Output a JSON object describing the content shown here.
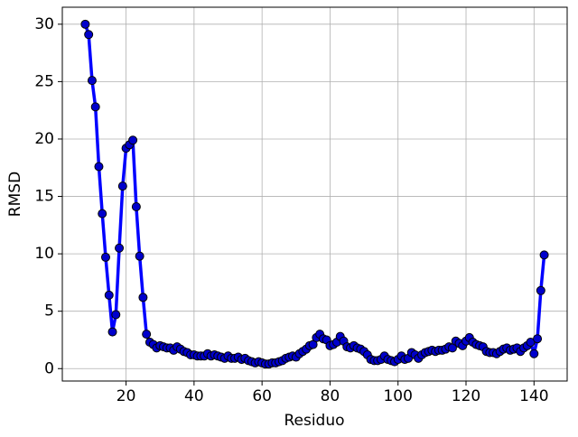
{
  "chart_data": {
    "type": "line",
    "xlabel": "Residuo",
    "ylabel": "RMSD",
    "x": [
      8,
      9,
      10,
      11,
      12,
      13,
      14,
      15,
      16,
      17,
      18,
      19,
      20,
      21,
      22,
      23,
      24,
      25,
      26,
      27,
      28,
      29,
      30,
      31,
      32,
      33,
      34,
      35,
      36,
      37,
      38,
      39,
      40,
      41,
      42,
      43,
      44,
      45,
      46,
      47,
      48,
      49,
      50,
      51,
      52,
      53,
      54,
      55,
      56,
      57,
      58,
      59,
      60,
      61,
      62,
      63,
      64,
      65,
      66,
      67,
      68,
      69,
      70,
      71,
      72,
      73,
      74,
      75,
      76,
      77,
      78,
      79,
      80,
      81,
      82,
      83,
      84,
      85,
      86,
      87,
      88,
      89,
      90,
      91,
      92,
      93,
      94,
      95,
      96,
      97,
      98,
      99,
      100,
      101,
      102,
      103,
      104,
      105,
      106,
      107,
      108,
      109,
      110,
      111,
      112,
      113,
      114,
      115,
      116,
      117,
      118,
      119,
      120,
      121,
      122,
      123,
      124,
      125,
      126,
      127,
      128,
      129,
      130,
      131,
      132,
      133,
      134,
      135,
      136,
      137,
      138,
      139,
      140,
      141,
      142,
      143
    ],
    "series": [
      {
        "color": "#0000ff",
        "marker_color": "#0000cc",
        "values": [
          30.0,
          29.1,
          25.1,
          22.8,
          17.6,
          13.5,
          9.7,
          6.4,
          3.2,
          4.7,
          10.5,
          15.9,
          19.2,
          19.5,
          19.9,
          14.1,
          9.8,
          6.2,
          3.0,
          2.3,
          2.1,
          1.8,
          2.0,
          1.9,
          1.8,
          1.8,
          1.6,
          1.9,
          1.7,
          1.5,
          1.4,
          1.2,
          1.2,
          1.1,
          1.1,
          1.1,
          1.3,
          1.1,
          1.2,
          1.1,
          1.0,
          0.9,
          1.1,
          0.9,
          0.9,
          1.0,
          0.8,
          0.9,
          0.7,
          0.6,
          0.5,
          0.6,
          0.5,
          0.4,
          0.4,
          0.5,
          0.5,
          0.6,
          0.7,
          0.9,
          1.0,
          1.1,
          1.0,
          1.3,
          1.5,
          1.7,
          2.0,
          2.1,
          2.7,
          3.0,
          2.6,
          2.5,
          2.0,
          2.1,
          2.3,
          2.8,
          2.4,
          1.9,
          1.8,
          2.0,
          1.8,
          1.7,
          1.5,
          1.2,
          0.8,
          0.7,
          0.7,
          0.8,
          1.1,
          0.8,
          0.7,
          0.6,
          0.8,
          1.1,
          0.8,
          0.9,
          1.4,
          1.2,
          0.9,
          1.2,
          1.4,
          1.5,
          1.6,
          1.5,
          1.6,
          1.6,
          1.7,
          1.9,
          1.8,
          2.4,
          2.2,
          2.0,
          2.4,
          2.7,
          2.3,
          2.1,
          2.0,
          1.9,
          1.5,
          1.4,
          1.4,
          1.3,
          1.5,
          1.7,
          1.8,
          1.6,
          1.7,
          1.8,
          1.5,
          1.8,
          2.0,
          2.3,
          1.3,
          2.6,
          6.8,
          9.9
        ]
      }
    ],
    "xlim": [
      1.25,
      149.75
    ],
    "xticks": [
      20,
      40,
      60,
      80,
      100,
      120,
      140
    ],
    "ylim": [
      -1.08,
      31.48
    ],
    "yticks": [
      0,
      5,
      10,
      15,
      20,
      25,
      30
    ],
    "grid": true
  }
}
